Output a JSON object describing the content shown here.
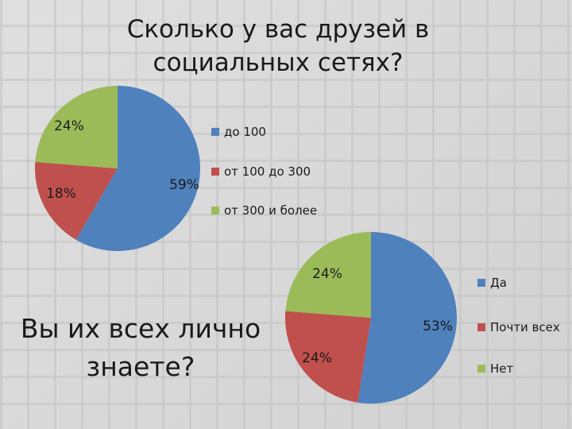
{
  "title": "Сколько у вас друзей в социальных сетях?",
  "question2": "Вы их всех лично знаете?",
  "colors": {
    "blue": "#4f81bd",
    "red": "#c0504d",
    "green": "#9bbb59"
  },
  "chart_data": [
    {
      "type": "pie",
      "title": "Сколько у вас друзей в социальных сетях?",
      "categories": [
        "до 100",
        "от 100 до 300",
        "от 300 и более"
      ],
      "values": [
        59,
        18,
        24
      ],
      "labels": [
        "59%",
        "18%",
        "24%"
      ],
      "colors": [
        "#4f81bd",
        "#c0504d",
        "#9bbb59"
      ],
      "legend_position": "right"
    },
    {
      "type": "pie",
      "title": "Вы их всех лично знаете?",
      "categories": [
        "Да",
        "Почти всех",
        "Нет"
      ],
      "values": [
        53,
        24,
        24
      ],
      "labels": [
        "53%",
        "24%",
        "24%"
      ],
      "colors": [
        "#4f81bd",
        "#c0504d",
        "#9bbb59"
      ],
      "legend_position": "right"
    }
  ]
}
